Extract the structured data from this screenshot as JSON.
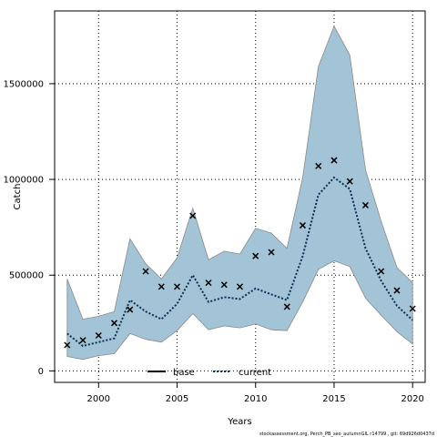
{
  "chart_data": {
    "type": "line",
    "title": "",
    "xlabel": "Years",
    "ylabel": "Catch",
    "xlim": [
      1997.2,
      2020.8
    ],
    "ylim": [
      -60000,
      1880000
    ],
    "x_ticks": [
      2000,
      2005,
      2010,
      2015,
      2020
    ],
    "y_ticks": [
      0,
      500000,
      1000000,
      1500000
    ],
    "y_tick_labels": [
      "0",
      "500000",
      "1000000",
      "1500000"
    ],
    "grid": true,
    "legend_position": "bottom-center",
    "x": [
      1998,
      1999,
      2000,
      2001,
      2002,
      2003,
      2004,
      2005,
      2006,
      2007,
      2008,
      2009,
      2010,
      2011,
      2012,
      2013,
      2014,
      2015,
      2016,
      2017,
      2018,
      2019,
      2020
    ],
    "series": [
      {
        "name": "base",
        "kind": "points",
        "values": [
          135000,
          160000,
          185000,
          250000,
          320000,
          520000,
          440000,
          440000,
          810000,
          460000,
          450000,
          440000,
          600000,
          620000,
          335000,
          760000,
          1070000,
          1100000,
          990000,
          865000,
          520000,
          420000,
          325000
        ]
      },
      {
        "name": "current",
        "kind": "line",
        "values": [
          195000,
          130000,
          150000,
          170000,
          370000,
          310000,
          270000,
          350000,
          500000,
          360000,
          385000,
          375000,
          430000,
          400000,
          370000,
          600000,
          920000,
          1010000,
          950000,
          640000,
          470000,
          340000,
          265000
        ],
        "band_lower": [
          75000,
          60000,
          80000,
          90000,
          195000,
          165000,
          150000,
          210000,
          300000,
          215000,
          235000,
          225000,
          245000,
          215000,
          210000,
          360000,
          530000,
          575000,
          545000,
          380000,
          290000,
          205000,
          140000
        ],
        "band_upper": [
          480000,
          270000,
          285000,
          310000,
          690000,
          560000,
          480000,
          590000,
          850000,
          580000,
          625000,
          610000,
          745000,
          720000,
          640000,
          1010000,
          1590000,
          1800000,
          1650000,
          1050000,
          780000,
          540000,
          460000
        ]
      }
    ],
    "colors": {
      "band": "#a3c4d6",
      "band_edge": "#8a8a8a",
      "line": "#0b2f52",
      "points": "#000000",
      "axis": "#000000",
      "grid": "#000000"
    },
    "caption": "stockassessment.org, Perch_PB_seo_autumnGIL r14799 , git: 69d926d0437d"
  }
}
